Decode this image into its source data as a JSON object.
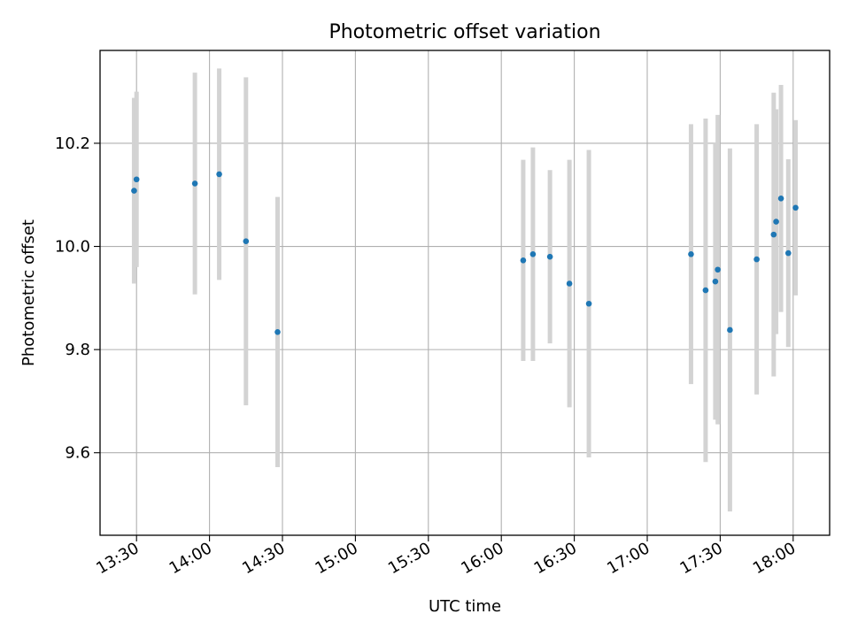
{
  "chart_data": {
    "type": "scatter",
    "title": "Photometric offset variation",
    "xlabel": "UTC time",
    "ylabel": "Photometric offset",
    "x_axis_type": "time",
    "xlim": [
      "13:15",
      "18:15"
    ],
    "ylim": [
      9.44,
      10.38
    ],
    "grid": true,
    "legend": "none",
    "x_ticks": [
      "13:30",
      "14:00",
      "14:30",
      "15:00",
      "15:30",
      "16:00",
      "16:30",
      "17:00",
      "17:30",
      "18:00"
    ],
    "y_ticks": [
      9.6,
      9.8,
      10.0,
      10.2
    ],
    "y_tick_labels": [
      "9.6",
      "9.8",
      "10.0",
      "10.2"
    ],
    "point_color": "#1f77b4",
    "errorbar_color": "#d3d3d3",
    "points": [
      {
        "x": "13:29",
        "y": 10.108,
        "err": 0.18
      },
      {
        "x": "13:30",
        "y": 10.13,
        "err": 0.17
      },
      {
        "x": "13:54",
        "y": 10.122,
        "err": 0.215
      },
      {
        "x": "14:04",
        "y": 10.14,
        "err": 0.205
      },
      {
        "x": "14:15",
        "y": 10.01,
        "err": 0.318
      },
      {
        "x": "14:28",
        "y": 9.834,
        "err": 0.262
      },
      {
        "x": "16:09",
        "y": 9.973,
        "err": 0.195
      },
      {
        "x": "16:13",
        "y": 9.985,
        "err": 0.207
      },
      {
        "x": "16:20",
        "y": 9.98,
        "err": 0.168
      },
      {
        "x": "16:28",
        "y": 9.928,
        "err": 0.24
      },
      {
        "x": "16:36",
        "y": 9.889,
        "err": 0.298
      },
      {
        "x": "17:18",
        "y": 9.985,
        "err": 0.252
      },
      {
        "x": "17:24",
        "y": 9.915,
        "err": 0.333
      },
      {
        "x": "17:28",
        "y": 9.932,
        "err": 0.268
      },
      {
        "x": "17:29",
        "y": 9.955,
        "err": 0.3
      },
      {
        "x": "17:34",
        "y": 9.838,
        "err": 0.352
      },
      {
        "x": "17:45",
        "y": 9.975,
        "err": 0.262
      },
      {
        "x": "17:52",
        "y": 10.023,
        "err": 0.275
      },
      {
        "x": "17:53",
        "y": 10.048,
        "err": 0.218
      },
      {
        "x": "17:55",
        "y": 10.093,
        "err": 0.22
      },
      {
        "x": "17:58",
        "y": 9.987,
        "err": 0.182
      },
      {
        "x": "18:01",
        "y": 10.075,
        "err": 0.17
      }
    ]
  }
}
